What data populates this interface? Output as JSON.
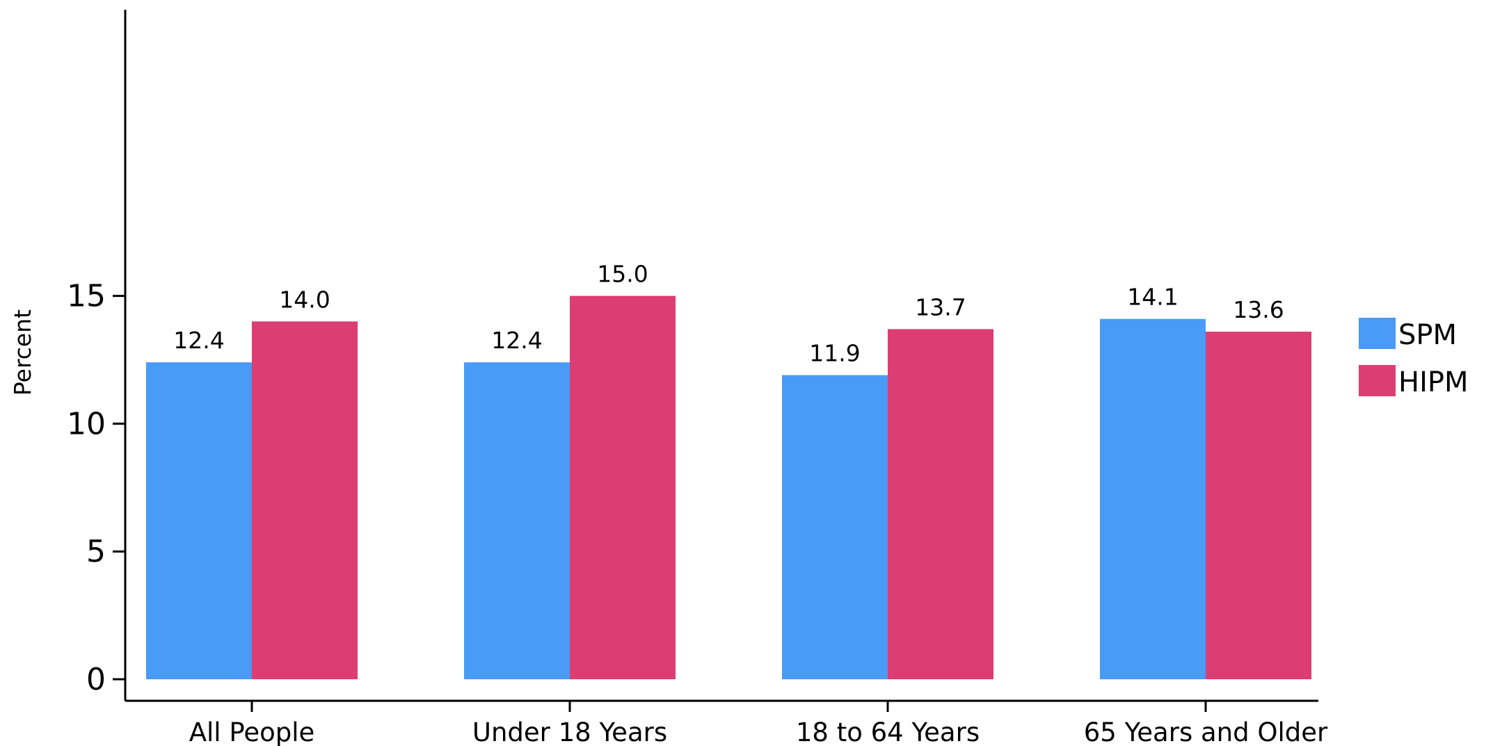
{
  "chart_data": {
    "type": "bar",
    "title": "",
    "xlabel": "",
    "ylabel": "Percent",
    "categories": [
      "All People",
      "Under 18 Years",
      "18 to 64 Years",
      "65 Years and Older"
    ],
    "series": [
      {
        "name": "SPM",
        "values": [
          12.4,
          12.4,
          11.9,
          14.1
        ],
        "labels": [
          "12.4",
          "12.4",
          "11.9",
          "14.1"
        ],
        "color": "#4a9af7"
      },
      {
        "name": "HIPM",
        "values": [
          14.0,
          15.0,
          13.7,
          13.6
        ],
        "labels": [
          "14.0",
          "15.0",
          "13.7",
          "13.6"
        ],
        "color": "#dc3d72"
      }
    ],
    "yticks": [
      0,
      5,
      10,
      15
    ],
    "ylim": [
      0,
      17.5
    ],
    "grid": false,
    "legend_position": "right"
  }
}
